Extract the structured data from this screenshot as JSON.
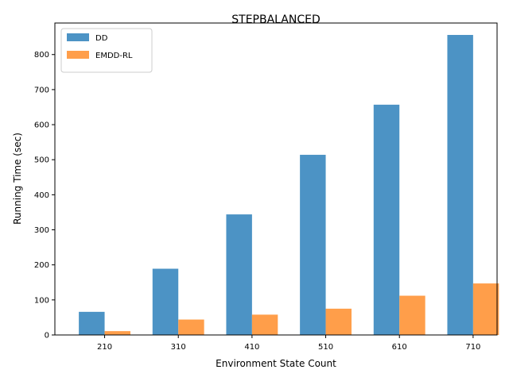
{
  "chart_data": {
    "type": "bar",
    "title": "STEPBALANCED",
    "xlabel": "Environment State Count",
    "ylabel": "Running Time (sec)",
    "categories": [
      "210",
      "310",
      "410",
      "510",
      "610",
      "710"
    ],
    "ylim": [
      0,
      890
    ],
    "yticks": [
      0,
      100,
      200,
      300,
      400,
      500,
      600,
      700,
      800
    ],
    "legend_position": "top-left",
    "grid": false,
    "series": [
      {
        "name": "DD",
        "color": "#4c93c5",
        "values": [
          66,
          189,
          344,
          514,
          657,
          856
        ]
      },
      {
        "name": "EMDD-RL",
        "color": "#ff9e4a",
        "values": [
          11,
          44,
          58,
          75,
          112,
          147
        ]
      }
    ]
  }
}
